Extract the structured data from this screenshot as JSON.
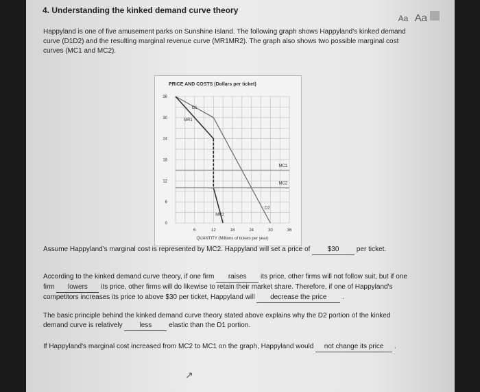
{
  "header": {
    "title": "4. Understanding the kinked demand curve theory",
    "font_small": "Aa",
    "font_large": "Aa",
    "print_icon": "printer-icon"
  },
  "intro": "Happyland is one of five amusement parks on Sunshine Island. The following graph shows Happyland's kinked demand curve (D1D2) and the resulting marginal revenue curve (MR1MR2). The graph also shows two possible marginal cost curves (MC1 and MC2).",
  "chart_data": {
    "type": "line",
    "title": "PRICE AND COSTS (Dollars per ticket)",
    "xlabel": "QUANTITY (Millions of tickets per year)",
    "ylabel": "PRICE AND COSTS (Dollars per ticket)",
    "xlim": [
      0,
      36
    ],
    "ylim": [
      0,
      36
    ],
    "xticks": [
      0,
      6,
      12,
      18,
      24,
      30,
      36
    ],
    "yticks": [
      0,
      6,
      12,
      18,
      24,
      30,
      36
    ],
    "grid": true,
    "series": [
      {
        "name": "D1",
        "points": [
          [
            0,
            36
          ],
          [
            12,
            30
          ]
        ],
        "color": "#666"
      },
      {
        "name": "D2",
        "points": [
          [
            12,
            30
          ],
          [
            30,
            0
          ]
        ],
        "color": "#666"
      },
      {
        "name": "MR1",
        "points": [
          [
            0,
            36
          ],
          [
            12,
            24
          ]
        ],
        "color": "#333"
      },
      {
        "name": "MR2",
        "points": [
          [
            12,
            10
          ],
          [
            15,
            0
          ]
        ],
        "color": "#333"
      },
      {
        "name": "gap",
        "points": [
          [
            12,
            24
          ],
          [
            12,
            10
          ]
        ],
        "color": "#222",
        "dashed": true
      },
      {
        "name": "MC1",
        "points": [
          [
            0,
            15
          ],
          [
            36,
            15
          ]
        ],
        "color": "#777"
      },
      {
        "name": "MC2",
        "points": [
          [
            0,
            10
          ],
          [
            36,
            10
          ]
        ],
        "color": "#777"
      }
    ]
  },
  "q1": {
    "before": "Assume Happyland's marginal cost is represented by MC2. Happyland will set a price of",
    "answer": "$30",
    "after": "per ticket."
  },
  "q2": {
    "t1": "According to the kinked demand curve theory, if one firm",
    "a1": "raises",
    "t2": "its price, other firms will not follow suit, but if one firm",
    "a2": "lowers",
    "t3": "its price, other firms will do likewise to retain their market share. Therefore, if one of Happyland's competitors increases its price to above $30 per ticket, Happyland will",
    "a3": "decrease the price",
    "t4": "."
  },
  "q3": {
    "t1": "The basic principle behind the kinked demand curve theory stated above explains why the D2 portion of the kinked demand curve is relatively",
    "a1": "less",
    "t2": "elastic than the D1 portion."
  },
  "q4": {
    "t1": "If Happyland's marginal cost increased from MC2 to MC1 on the graph, Happyland would",
    "a1": "not change its price",
    "t2": "."
  }
}
